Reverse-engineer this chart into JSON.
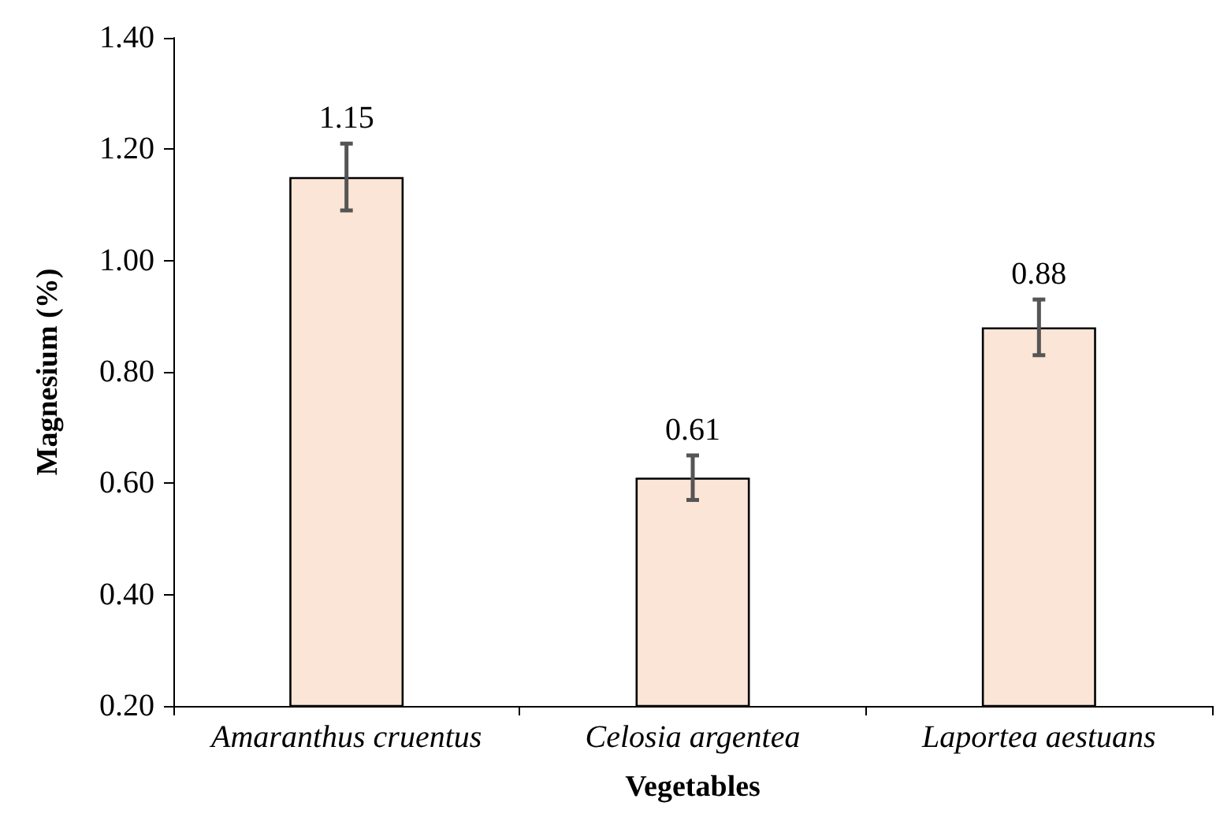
{
  "chart_data": {
    "type": "bar",
    "xlabel": "Vegetables",
    "ylabel": "Magnesium (%)",
    "categories": [
      "Amaranthus cruentus",
      "Celosia argentea",
      "Laportea aestuans"
    ],
    "values": [
      1.15,
      0.61,
      0.88
    ],
    "errors": [
      0.06,
      0.04,
      0.05
    ],
    "color": "#fbe5d6",
    "data_labels": true,
    "ylim": [
      0.2,
      1.4
    ],
    "yticks": [
      {
        "value": 0.2,
        "label": "0.20"
      },
      {
        "value": 0.4,
        "label": "0.40"
      },
      {
        "value": 0.6,
        "label": "0.60"
      },
      {
        "value": 0.8,
        "label": "0.80"
      },
      {
        "value": 1.0,
        "label": "1.00"
      },
      {
        "value": 1.2,
        "label": "1.20"
      },
      {
        "value": 1.4,
        "label": "1.40"
      }
    ],
    "grid": false
  }
}
